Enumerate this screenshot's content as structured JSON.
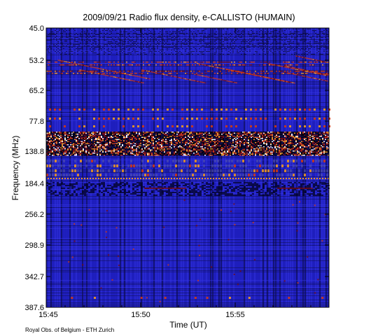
{
  "chart_data": {
    "type": "heatmap",
    "title": "2009/09/21  Radio flux density, e-CALLISTO (HUMAIN)",
    "xlabel": "Time (UT)",
    "ylabel": "Frequency (MHz)",
    "x_ticks": [
      "15:45",
      "15:50",
      "15:55"
    ],
    "y_ticks": [
      "45.0",
      "53.2",
      "65.2",
      "77.8",
      "138.8",
      "184.4",
      "256.2",
      "298.9",
      "342.7",
      "387.6"
    ],
    "credit": "Royal Obs. of Belgium - ETH Zurich",
    "colormap": [
      "#0a0a3a",
      "#1d1db8",
      "#2f2fd8",
      "#7a0a0a",
      "#d23a10",
      "#f09a20",
      "#ffffff"
    ],
    "features": [
      {
        "freq_range_mhz": [
          48,
          66
        ],
        "kind": "drifting bright bursts",
        "time_range": [
          "15:45",
          "15:59"
        ]
      },
      {
        "freq_range_mhz": [
          120,
          150
        ],
        "kind": "intense broadband band",
        "time_range": [
          "15:45",
          "15:59"
        ]
      },
      {
        "freq_range_mhz": [
          155,
          175
        ],
        "kind": "patchy interference rows",
        "time_range": [
          "15:45",
          "15:59"
        ]
      },
      {
        "freq_range_mhz": [
          184,
          190
        ],
        "kind": "steady dotted emission line",
        "time_range": [
          "15:45",
          "15:59"
        ]
      }
    ]
  }
}
